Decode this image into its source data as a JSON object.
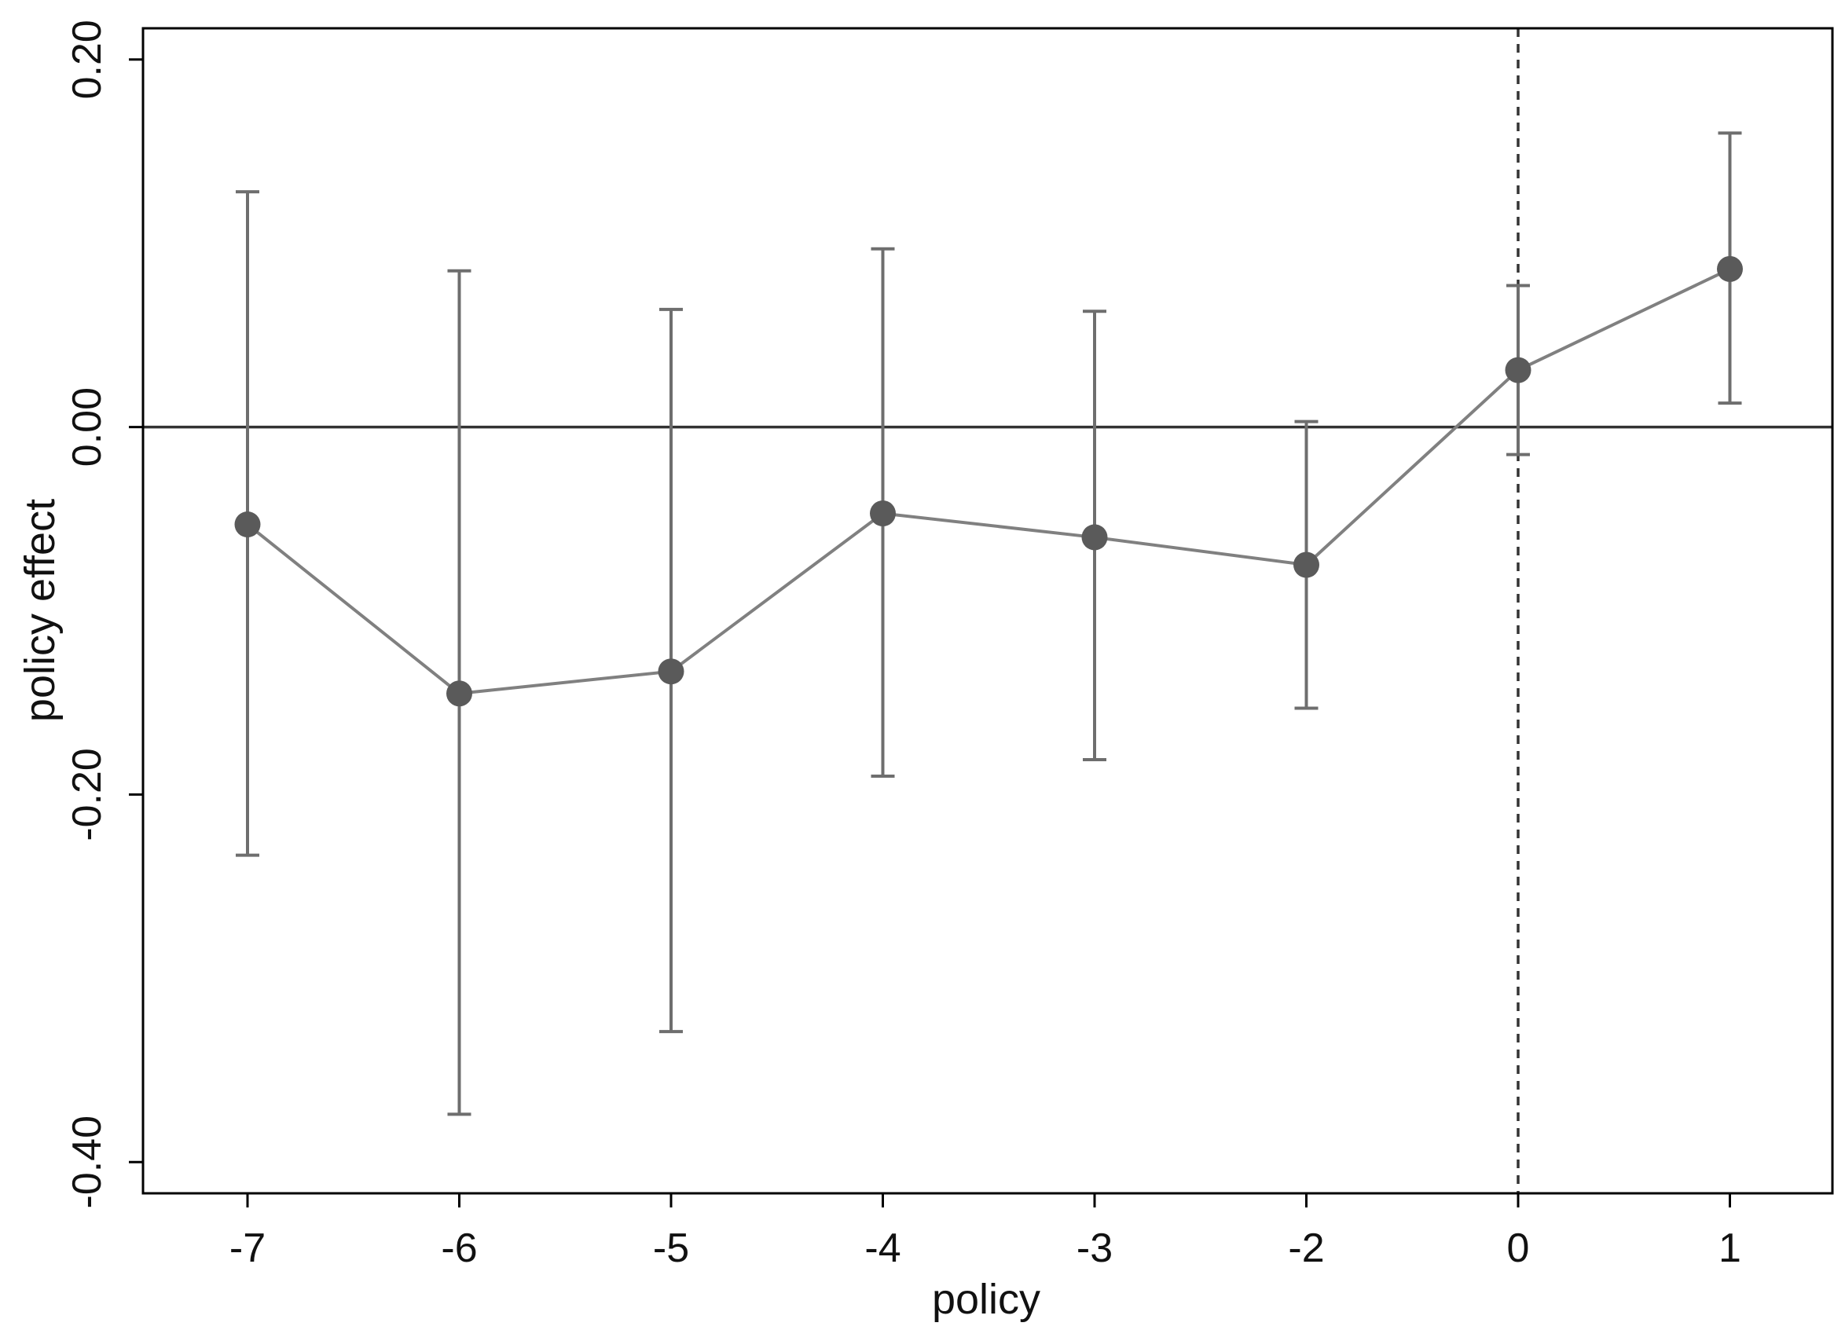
{
  "chart_data": {
    "type": "scatter",
    "title": "",
    "xlabel": "policy",
    "ylabel": "policy effect",
    "x_categories": [
      "-7",
      "-6",
      "-5",
      "-4",
      "-3",
      "-2",
      "0",
      "1"
    ],
    "y_ticks": [
      "0.20",
      "0.00",
      "-0.20",
      "-0.40"
    ],
    "y_tick_values": [
      0.2,
      0.0,
      -0.2,
      -0.4
    ],
    "ylim": [
      -0.417,
      0.217
    ],
    "series": [
      {
        "points": [
          {
            "x": "-7",
            "y": -0.053,
            "lower": -0.233,
            "upper": 0.128
          },
          {
            "x": "-6",
            "y": -0.145,
            "lower": -0.374,
            "upper": 0.085
          },
          {
            "x": "-5",
            "y": -0.133,
            "lower": -0.329,
            "upper": 0.064
          },
          {
            "x": "-4",
            "y": -0.047,
            "lower": -0.19,
            "upper": 0.097
          },
          {
            "x": "-3",
            "y": -0.06,
            "lower": -0.181,
            "upper": 0.063
          },
          {
            "x": "-2",
            "y": -0.075,
            "lower": -0.153,
            "upper": 0.003
          },
          {
            "x": "0",
            "y": 0.031,
            "lower": -0.015,
            "upper": 0.077
          },
          {
            "x": "1",
            "y": 0.086,
            "lower": 0.013,
            "upper": 0.16
          }
        ]
      }
    ],
    "reference_lines": {
      "horizontal_y": 0.0,
      "vertical_x": "0",
      "vertical_style": "dashed"
    },
    "grid": false,
    "legend": "none",
    "colors": {
      "line": "#808080",
      "marker": "#5a5a5a",
      "errorbar": "#6e6e6e",
      "frame": "#000000",
      "zero_line": "#333333"
    }
  }
}
